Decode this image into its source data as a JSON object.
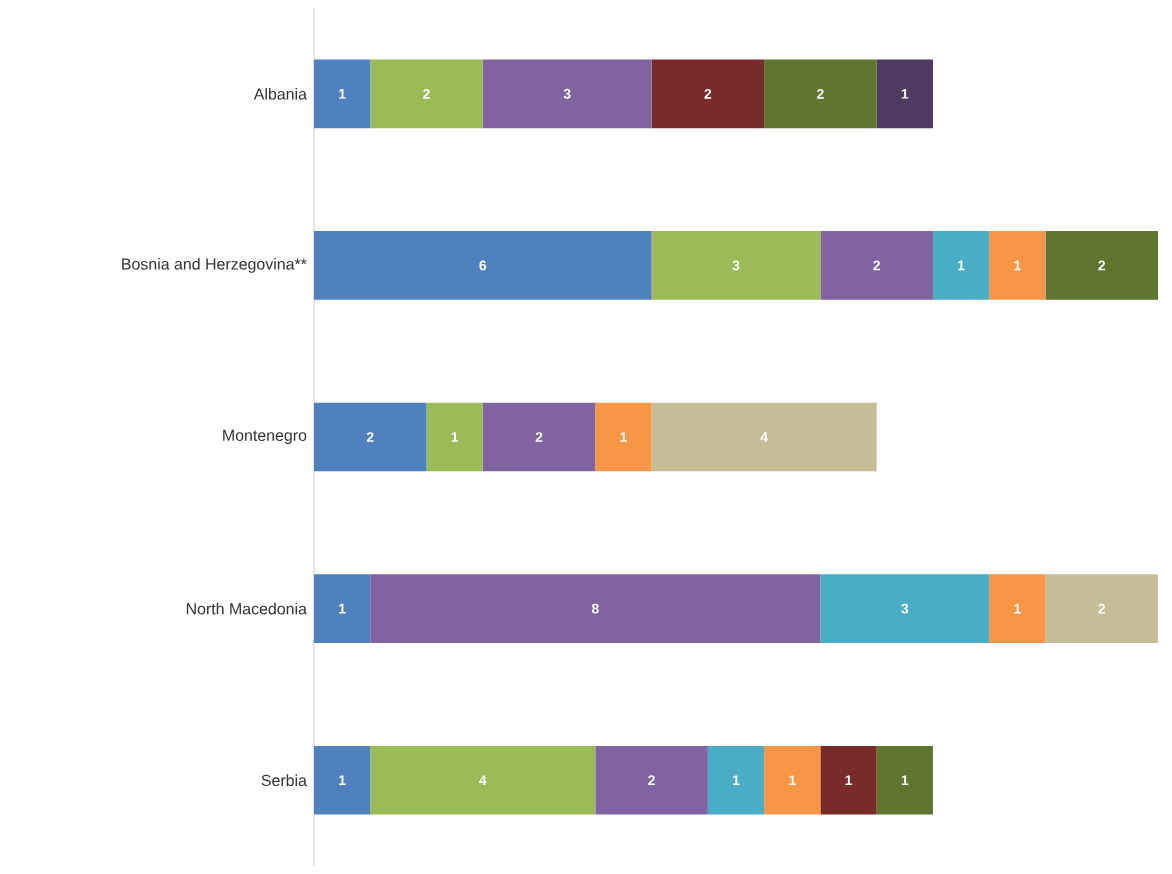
{
  "chart_data": {
    "type": "bar",
    "orientation": "horizontal",
    "stacked": true,
    "data_labels": true,
    "categories": [
      "Albania",
      "Bosnia and Herzegovina**",
      "Montenegro",
      "North Macedonia",
      "Serbia"
    ],
    "series": [
      {
        "color": "#4f81bd",
        "values": [
          1,
          6,
          2,
          1,
          1
        ]
      },
      {
        "color": "#9bbb59",
        "values": [
          2,
          3,
          1,
          null,
          4
        ]
      },
      {
        "color": "#8064a2",
        "values": [
          3,
          2,
          2,
          8,
          2
        ]
      },
      {
        "color": "#4bacc6",
        "values": [
          null,
          1,
          null,
          3,
          1
        ]
      },
      {
        "color": "#f79646",
        "values": [
          null,
          1,
          1,
          1,
          1
        ]
      },
      {
        "color": "#772c2a",
        "values": [
          2,
          null,
          null,
          null,
          1
        ]
      },
      {
        "color": "#5f7530",
        "values": [
          2,
          2,
          null,
          null,
          1
        ]
      },
      {
        "color": "#4d3b62",
        "values": [
          1,
          null,
          null,
          null,
          null
        ]
      },
      {
        "color": "#c4bd97",
        "values": [
          null,
          null,
          4,
          2,
          null
        ]
      }
    ]
  }
}
